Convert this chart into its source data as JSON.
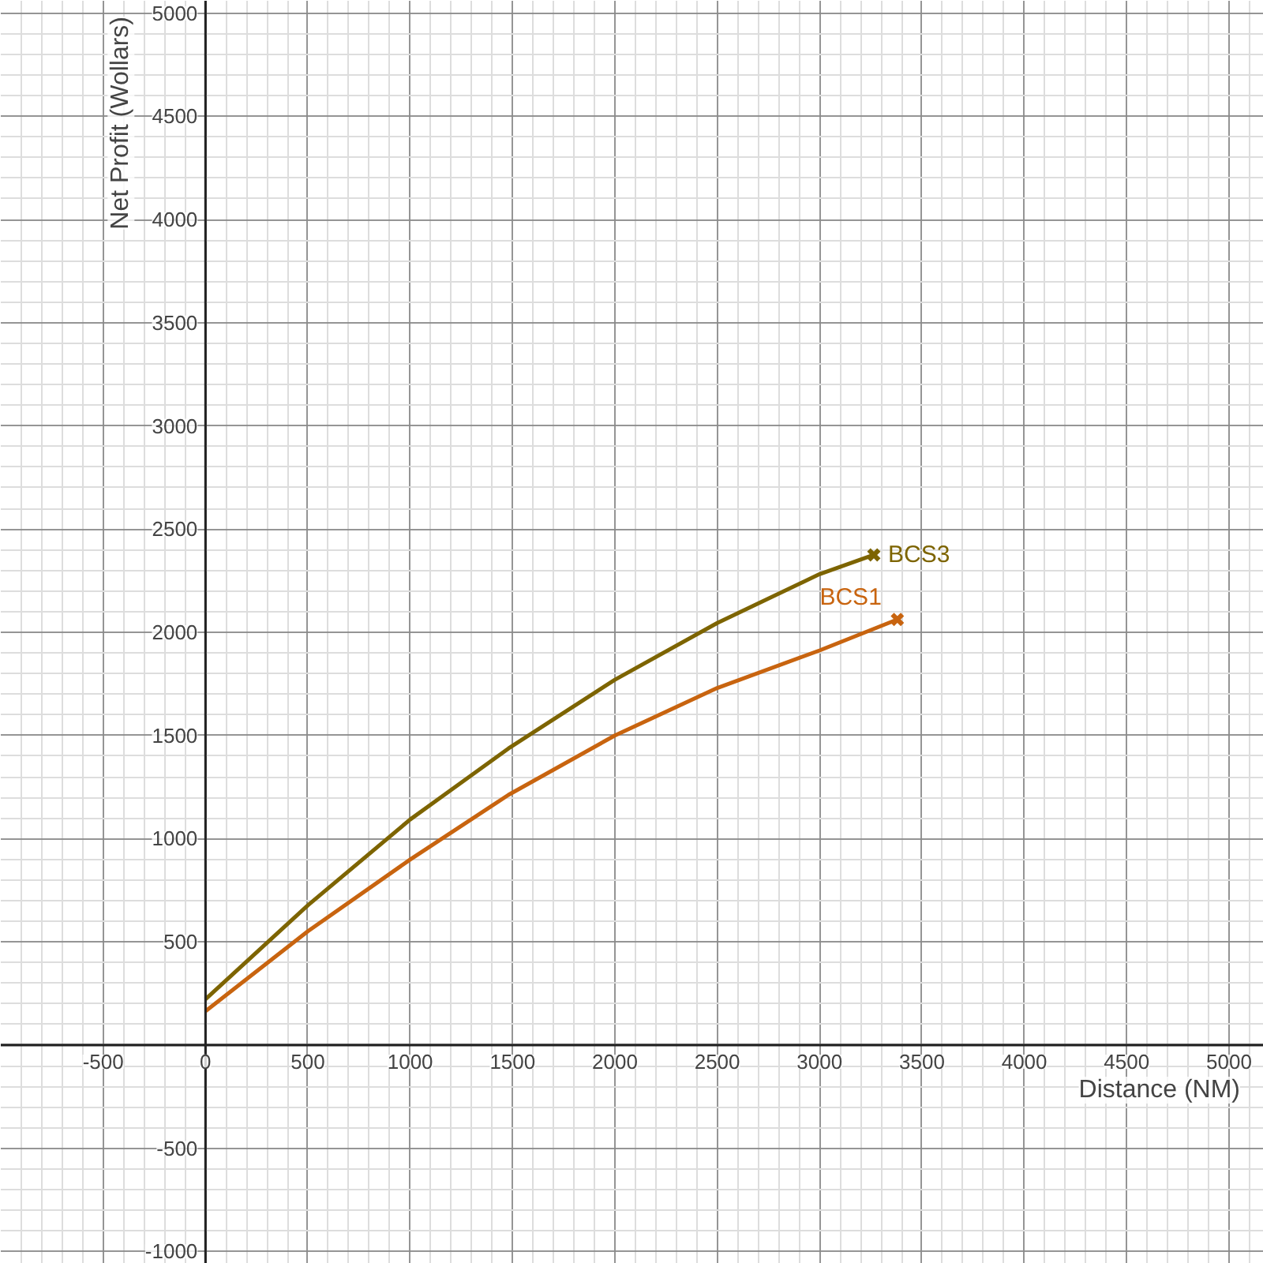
{
  "chart_data": {
    "type": "line",
    "xlabel": "Distance (NM)",
    "ylabel": "Net Profit (Wollars)",
    "xlim": [
      -1000,
      5170
    ],
    "ylim": [
      -1060,
      5060
    ],
    "xticks": [
      -500,
      0,
      500,
      1000,
      1500,
      2000,
      2500,
      3000,
      3500,
      4000,
      4500,
      5000
    ],
    "yticks": [
      -1000,
      -500,
      {
        "value": 0,
        "label": null
      },
      500,
      1000,
      1500,
      2000,
      2500,
      3000,
      3500,
      4000,
      4500,
      5000
    ],
    "grid": true,
    "line_style": "solid",
    "series": [
      {
        "name": "BCS3",
        "color": "#7d6400",
        "x": [
          0,
          500,
          1000,
          1480,
          2000,
          2500,
          3000,
          3265
        ],
        "values": [
          222,
          677,
          1093,
          1437,
          1770,
          2045,
          2282,
          2375
        ]
      },
      {
        "name": "BCS1",
        "color": "#c8640f",
        "x": [
          0,
          500,
          1000,
          1480,
          2000,
          2500,
          3000,
          3380
        ],
        "values": [
          164,
          551,
          899,
          1212,
          1500,
          1730,
          1912,
          2062
        ]
      },
      {
        "type": "scatter",
        "marker": "cross",
        "color": "#7d6400",
        "x": [
          3265
        ],
        "values": [
          2375
        ]
      },
      {
        "type": "scatter",
        "marker": "cross",
        "color": "#c8640f",
        "x": [
          3380
        ],
        "values": [
          2062
        ]
      }
    ]
  }
}
